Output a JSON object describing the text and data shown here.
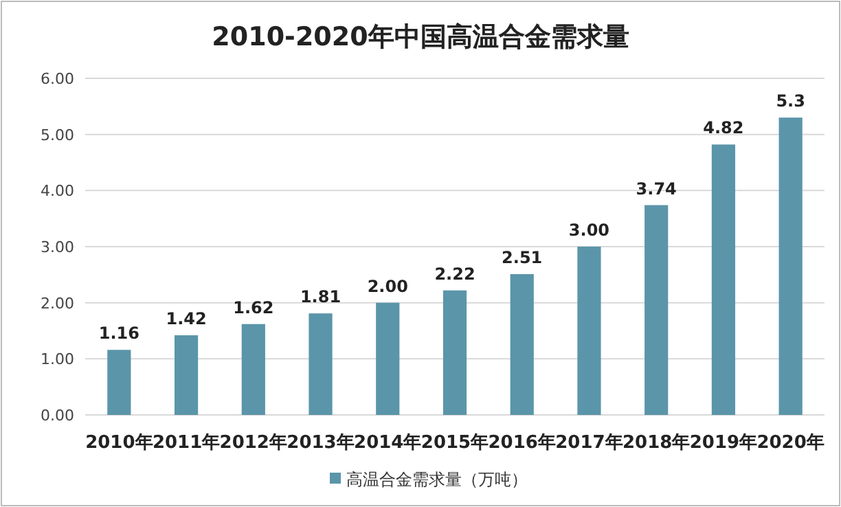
{
  "chart_data": {
    "type": "bar",
    "title": "2010-2020年中国高温合金需求量",
    "categories": [
      "2010年",
      "2011年",
      "2012年",
      "2013年",
      "2014年",
      "2015年",
      "2016年",
      "2017年",
      "2018年",
      "2019年",
      "2020年"
    ],
    "series": [
      {
        "name": "高温合金需求量（万吨）",
        "color": "#5b95a9",
        "values": [
          1.16,
          1.42,
          1.62,
          1.81,
          2.0,
          2.22,
          2.51,
          3.0,
          3.74,
          4.82,
          5.3
        ],
        "value_labels": [
          "1.16",
          "1.42",
          "1.62",
          "1.81",
          "2.00",
          "2.22",
          "2.51",
          "3.00",
          "3.74",
          "4.82",
          "5.3"
        ]
      }
    ],
    "ylim": [
      0,
      6
    ],
    "yticks": [
      {
        "value": 0,
        "label": "0.00"
      },
      {
        "value": 1,
        "label": "1.00"
      },
      {
        "value": 2,
        "label": "2.00"
      },
      {
        "value": 3,
        "label": "3.00"
      },
      {
        "value": 4,
        "label": "4.00"
      },
      {
        "value": 5,
        "label": "5.00"
      },
      {
        "value": 6,
        "label": "6.00"
      }
    ],
    "grid": "y",
    "legend": "bottom"
  }
}
